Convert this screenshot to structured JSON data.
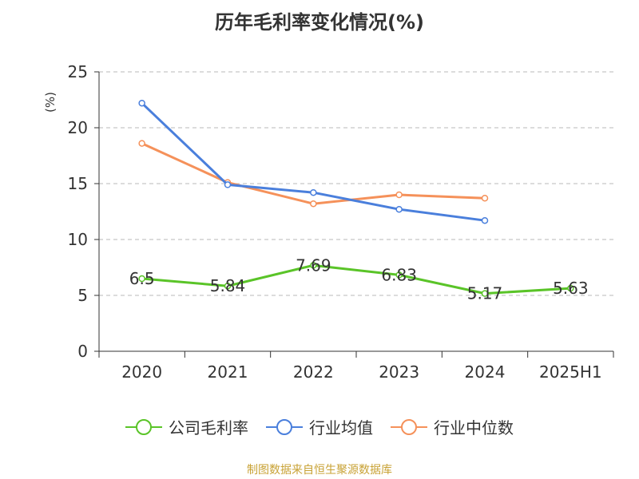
{
  "chart_data": {
    "type": "line",
    "title": "历年毛利率变化情况(%)",
    "ylabel": "(%)",
    "categories": [
      "2020",
      "2021",
      "2022",
      "2023",
      "2024",
      "2025H1"
    ],
    "ylim": [
      0,
      25
    ],
    "yticks": [
      0,
      5,
      10,
      15,
      20,
      25
    ],
    "grid": "horizontal-dashed",
    "legend_position": "bottom",
    "series": [
      {
        "name": "公司毛利率",
        "color": "#5ac428",
        "values": [
          6.5,
          5.84,
          7.69,
          6.83,
          5.17,
          5.63
        ],
        "labels": [
          "6.5",
          "5.84",
          "7.69",
          "6.83",
          "5.17",
          "5.63"
        ]
      },
      {
        "name": "行业均值",
        "color": "#4a7fdc",
        "values": [
          22.2,
          14.9,
          14.2,
          12.7,
          11.7,
          null
        ]
      },
      {
        "name": "行业中位数",
        "color": "#f5915a",
        "values": [
          18.6,
          15.1,
          13.2,
          14.0,
          13.7,
          null
        ]
      }
    ]
  },
  "source_note": "制图数据来自恒生聚源数据库"
}
